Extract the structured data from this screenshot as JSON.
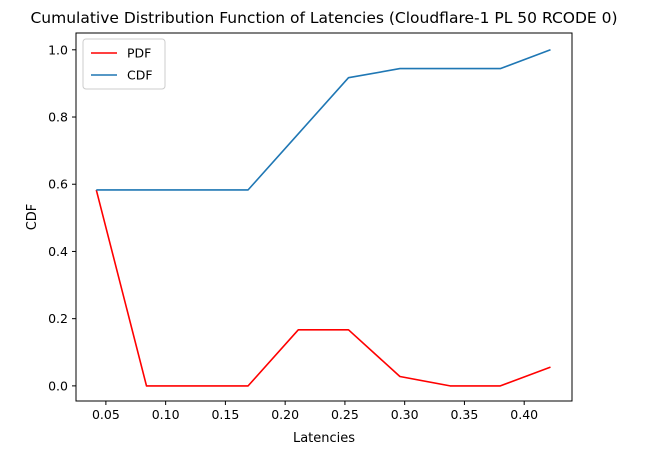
{
  "chart_data": {
    "type": "line",
    "title": "Cumulative Distribution Function of Latencies (Cloudflare-1 PL 50 RCODE 0)",
    "xlabel": "Latencies",
    "ylabel": "CDF",
    "xlim": [
      0.025,
      0.44
    ],
    "ylim": [
      -0.045,
      1.05
    ],
    "xticks": [
      0.05,
      0.1,
      0.15,
      0.2,
      0.25,
      0.3,
      0.35,
      0.4
    ],
    "xtick_labels": [
      "0.05",
      "0.10",
      "0.15",
      "0.20",
      "0.25",
      "0.30",
      "0.35",
      "0.40"
    ],
    "yticks": [
      0.0,
      0.2,
      0.4,
      0.6,
      0.8,
      1.0
    ],
    "ytick_labels": [
      "0.0",
      "0.2",
      "0.4",
      "0.6",
      "0.8",
      "1.0"
    ],
    "grid": false,
    "legend": "top-left",
    "x": [
      0.042,
      0.084,
      0.127,
      0.169,
      0.211,
      0.253,
      0.296,
      0.338,
      0.38,
      0.422
    ],
    "series": [
      {
        "name": "PDF",
        "color": "#ff0000",
        "values": [
          0.583,
          0.0,
          0.0,
          0.0,
          0.167,
          0.167,
          0.028,
          0.0,
          0.0,
          0.056
        ]
      },
      {
        "name": "CDF",
        "color": "#1f77b4",
        "values": [
          0.583,
          0.583,
          0.583,
          0.583,
          0.75,
          0.917,
          0.944,
          0.944,
          0.944,
          1.0
        ]
      }
    ]
  }
}
